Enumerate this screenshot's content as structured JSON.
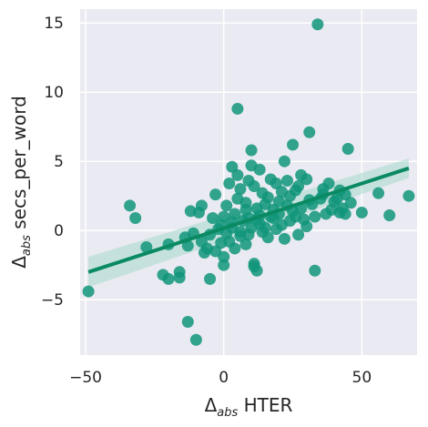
{
  "chart_data": {
    "type": "scatter",
    "xlabel_symbol": "Δ",
    "xlabel_sub": "abs",
    "xlabel_text": " HTER",
    "ylabel_symbol": "Δ",
    "ylabel_sub": "abs",
    "ylabel_text": " secs_per_word",
    "xlim": [
      -52,
      70
    ],
    "ylim": [
      -9,
      16
    ],
    "xticks": [
      -50,
      0,
      50
    ],
    "yticks": [
      -5,
      0,
      5,
      10,
      15
    ],
    "grid": true,
    "colors": {
      "point": "#11957a",
      "line": "#0a8a62",
      "band": "#9fd8c8",
      "background": "#eaeaf2",
      "grid": "#ffffff"
    },
    "regression": {
      "x": [
        -49,
        67
      ],
      "y": [
        -3.0,
        4.5
      ],
      "band_upper": [
        -1.9,
        5.2
      ],
      "band_lower": [
        -4.1,
        3.8
      ]
    },
    "points": [
      [
        34,
        14.9
      ],
      [
        5,
        8.8
      ],
      [
        31,
        7.1
      ],
      [
        25,
        6.2
      ],
      [
        45,
        5.9
      ],
      [
        10,
        5.8
      ],
      [
        22,
        5.0
      ],
      [
        3,
        4.6
      ],
      [
        10,
        4.7
      ],
      [
        13,
        4.4
      ],
      [
        5,
        4.0
      ],
      [
        17,
        3.7
      ],
      [
        19,
        3.4
      ],
      [
        28,
        4.0
      ],
      [
        38,
        3.4
      ],
      [
        30,
        3.7
      ],
      [
        56,
        2.7
      ],
      [
        67,
        2.5
      ],
      [
        42,
        2.9
      ],
      [
        44,
        2.6
      ],
      [
        36,
        2.6
      ],
      [
        40,
        2.1
      ],
      [
        46,
        2.0
      ],
      [
        -3,
        2.6
      ],
      [
        -8,
        1.8
      ],
      [
        -12,
        1.4
      ],
      [
        -34,
        1.8
      ],
      [
        -32,
        0.9
      ],
      [
        -9,
        1.3
      ],
      [
        -4,
        0.9
      ],
      [
        0,
        1.0
      ],
      [
        3,
        0.6
      ],
      [
        5,
        2.3
      ],
      [
        8,
        2.0
      ],
      [
        12,
        1.6
      ],
      [
        15,
        1.9
      ],
      [
        18,
        1.5
      ],
      [
        20,
        1.2
      ],
      [
        23,
        1.8
      ],
      [
        26,
        1.0
      ],
      [
        29,
        0.8
      ],
      [
        33,
        1.0
      ],
      [
        37,
        1.2
      ],
      [
        42,
        1.3
      ],
      [
        50,
        1.3
      ],
      [
        60,
        1.1
      ],
      [
        -28,
        -1.2
      ],
      [
        -20,
        -1.0
      ],
      [
        -14,
        -0.5
      ],
      [
        -11,
        -0.2
      ],
      [
        -8,
        -0.8
      ],
      [
        -6,
        -1.3
      ],
      [
        -5,
        -0.3
      ],
      [
        -3,
        -1.5
      ],
      [
        -1,
        -0.9
      ],
      [
        1,
        -0.2
      ],
      [
        2,
        -0.8
      ],
      [
        4,
        -1.3
      ],
      [
        6,
        -0.4
      ],
      [
        8,
        -1.0
      ],
      [
        10,
        0.2
      ],
      [
        14,
        -0.1
      ],
      [
        16,
        -0.5
      ],
      [
        19,
        0.1
      ],
      [
        22,
        -0.6
      ],
      [
        27,
        -0.3
      ],
      [
        -22,
        -3.2
      ],
      [
        -20,
        -3.5
      ],
      [
        -16,
        -3.4
      ],
      [
        -16,
        -3.0
      ],
      [
        -13,
        -6.6
      ],
      [
        -10,
        -7.9
      ],
      [
        -49,
        -4.4
      ],
      [
        -5,
        -3.5
      ],
      [
        0,
        -2.5
      ],
      [
        0,
        -1.9
      ],
      [
        11,
        -2.6
      ],
      [
        12,
        -2.9
      ],
      [
        11,
        -2.4
      ],
      [
        33,
        -2.9
      ],
      [
        -13,
        -1.1
      ],
      [
        -7,
        -1.6
      ],
      [
        24,
        0.7
      ],
      [
        30,
        0.3
      ],
      [
        9,
        0.9
      ],
      [
        13,
        0.5
      ],
      [
        2,
        3.4
      ],
      [
        6,
        3.0
      ],
      [
        11,
        3.2
      ],
      [
        21,
        2.8
      ],
      [
        24,
        2.5
      ],
      [
        27,
        3.2
      ],
      [
        35,
        2.3
      ],
      [
        16,
        2.4
      ],
      [
        8,
        1.5
      ],
      [
        3,
        0.2
      ],
      [
        -2,
        0.1
      ],
      [
        7,
        0.7
      ],
      [
        12,
        0.8
      ],
      [
        15,
        0.2
      ],
      [
        18,
        0.9
      ],
      [
        21,
        0.4
      ],
      [
        25,
        1.4
      ],
      [
        28,
        1.6
      ],
      [
        32,
        1.9
      ],
      [
        39,
        1.5
      ],
      [
        43,
        1.6
      ],
      [
        44,
        1.2
      ],
      [
        6,
        -0.1
      ],
      [
        9,
        -0.3
      ],
      [
        13,
        1.1
      ],
      [
        17,
        1.0
      ],
      [
        4,
        1.2
      ],
      [
        1,
        1.8
      ],
      [
        -1,
        0.4
      ],
      [
        20,
        2.1
      ],
      [
        26,
        2.9
      ],
      [
        9,
        3.6
      ],
      [
        14,
        2.7
      ],
      [
        23,
        3.6
      ],
      [
        31,
        2.2
      ],
      [
        36,
        3.0
      ],
      [
        41,
        2.3
      ]
    ]
  }
}
